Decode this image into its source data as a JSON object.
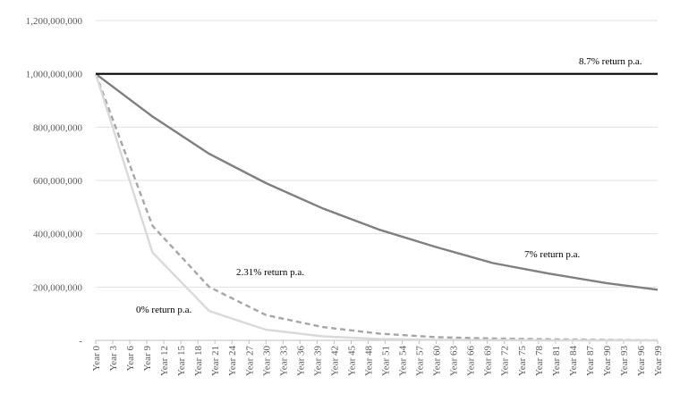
{
  "chart_data": {
    "type": "line",
    "title": "",
    "xlabel": "",
    "ylabel": "",
    "ylim": [
      0,
      1200000000
    ],
    "grid": true,
    "legend": "none",
    "y_ticks": [
      "-",
      "200,000,000",
      "400,000,000",
      "600,000,000",
      "800,000,000",
      "1,000,000,000",
      "1,200,000,000"
    ],
    "x_labels": [
      "Year 0",
      "Year 3",
      "Year 6",
      "Year 9",
      "Year 12",
      "Year 15",
      "Year 18",
      "Year 21",
      "Year 24",
      "Year 27",
      "Year 30",
      "Year 33",
      "Year 36",
      "Year 39",
      "Year 42",
      "Year 45",
      "Year 48",
      "Year 51",
      "Year 54",
      "Year 57",
      "Year 60",
      "Year 63",
      "Year 66",
      "Year 69",
      "Year 72",
      "Year 75",
      "Year 78",
      "Year 81",
      "Year 84",
      "Year 87",
      "Year 90",
      "Year 93",
      "Year 96",
      "Year 99"
    ],
    "x_points": [
      0,
      10,
      20,
      30,
      40,
      50,
      60,
      70,
      80,
      90,
      99
    ],
    "series": [
      {
        "name": "8.7% return p.a.",
        "color": "#000000",
        "dash": false,
        "values": [
          1000000000,
          1000000000,
          1000000000,
          1000000000,
          1000000000,
          1000000000,
          1000000000,
          1000000000,
          1000000000,
          1000000000,
          1000000000
        ]
      },
      {
        "name": "7% return p.a.",
        "color": "#7f7f7f",
        "dash": false,
        "values": [
          1000000000,
          840000000,
          700000000,
          590000000,
          495000000,
          415000000,
          350000000,
          290000000,
          250000000,
          215000000,
          190000000
        ]
      },
      {
        "name": "2.31% return p.a.",
        "color": "#a6a6a6",
        "dash": true,
        "values": [
          1000000000,
          430000000,
          200000000,
          95000000,
          50000000,
          25000000,
          12000000,
          7000000,
          4000000,
          2000000,
          0
        ]
      },
      {
        "name": "0% return p.a.",
        "color": "#d9d9d9",
        "dash": false,
        "values": [
          1000000000,
          330000000,
          110000000,
          40000000,
          15000000,
          5000000,
          2000000,
          1000000,
          0,
          0,
          0
        ]
      }
    ],
    "annotations": [
      {
        "text": "8.7% return p.a.",
        "series": 0
      },
      {
        "text": "7% return p.a.",
        "series": 1
      },
      {
        "text": "2.31% return p.a.",
        "series": 2
      },
      {
        "text": "0% return p.a.",
        "series": 3
      }
    ]
  }
}
